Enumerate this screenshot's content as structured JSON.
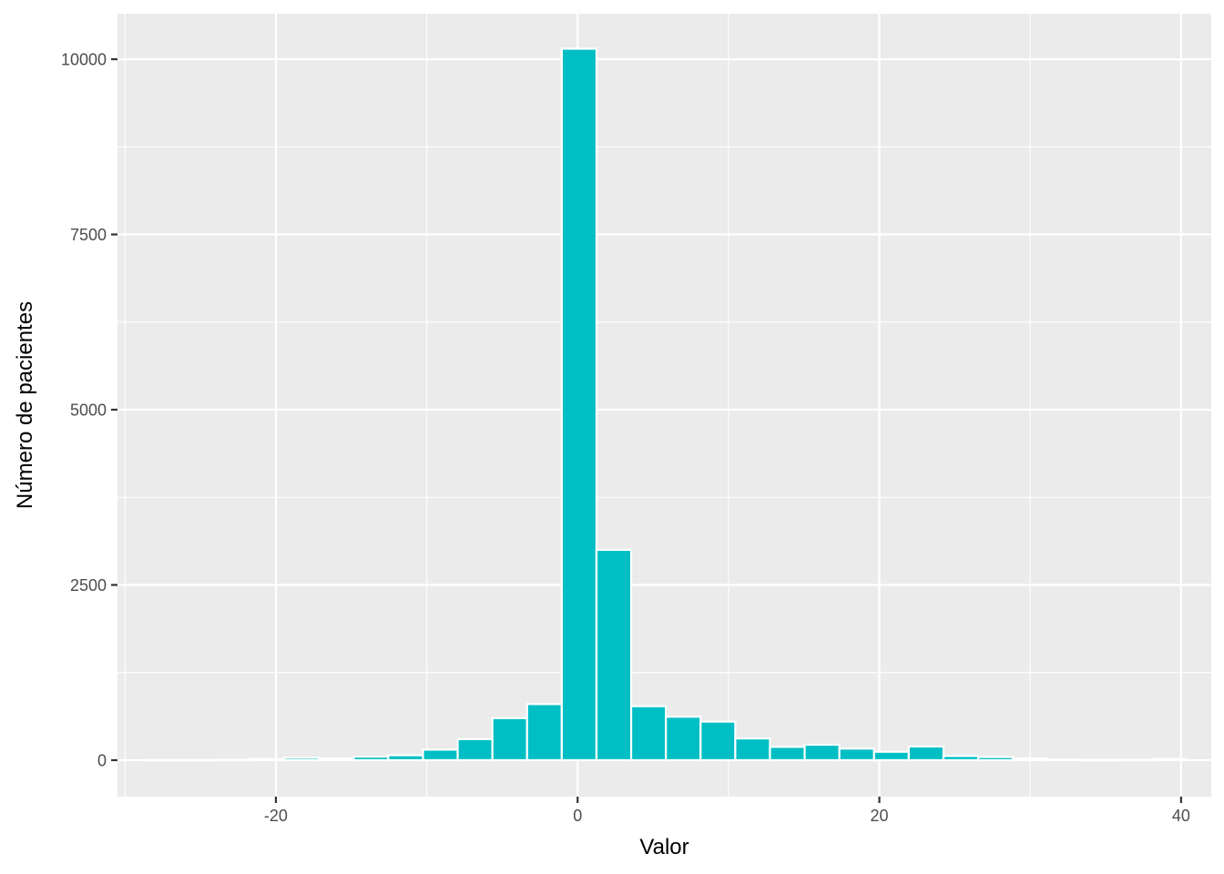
{
  "chart_data": {
    "type": "bar",
    "title": "",
    "xlabel": "Valor",
    "ylabel": "Número de pacientes",
    "xlim": [
      -30.5,
      42
    ],
    "ylim": [
      -520,
      10650
    ],
    "x_ticks": [
      -20,
      0,
      20,
      40
    ],
    "x_tick_labels": [
      "-20",
      "0",
      "20",
      "40"
    ],
    "y_ticks": [
      0,
      2500,
      5000,
      7500,
      10000
    ],
    "y_tick_labels": [
      "0",
      "2500",
      "5000",
      "7500",
      "10000"
    ],
    "grid": true,
    "legend": "none",
    "bin_width": 2.3,
    "bins": [
      {
        "x": -27.5,
        "count": 3
      },
      {
        "x": -25.2,
        "count": 3
      },
      {
        "x": -22.9,
        "count": 5
      },
      {
        "x": -20.6,
        "count": 15
      },
      {
        "x": -18.3,
        "count": 35
      },
      {
        "x": -16.0,
        "count": 25
      },
      {
        "x": -13.7,
        "count": 50
      },
      {
        "x": -11.4,
        "count": 70
      },
      {
        "x": -9.1,
        "count": 150
      },
      {
        "x": -6.8,
        "count": 300
      },
      {
        "x": -4.5,
        "count": 600
      },
      {
        "x": -2.2,
        "count": 800
      },
      {
        "x": 0.1,
        "count": 10150
      },
      {
        "x": 2.4,
        "count": 3000
      },
      {
        "x": 4.7,
        "count": 770
      },
      {
        "x": 7.0,
        "count": 620
      },
      {
        "x": 9.3,
        "count": 550
      },
      {
        "x": 11.6,
        "count": 310
      },
      {
        "x": 13.9,
        "count": 190
      },
      {
        "x": 16.2,
        "count": 220
      },
      {
        "x": 18.5,
        "count": 165
      },
      {
        "x": 20.8,
        "count": 120
      },
      {
        "x": 23.1,
        "count": 195
      },
      {
        "x": 25.4,
        "count": 60
      },
      {
        "x": 27.7,
        "count": 45
      },
      {
        "x": 30.0,
        "count": 25
      },
      {
        "x": 32.3,
        "count": 8
      },
      {
        "x": 34.6,
        "count": 4
      },
      {
        "x": 36.9,
        "count": 5
      },
      {
        "x": 39.2,
        "count": 15
      }
    ],
    "colors": {
      "fill": "#00BFC4",
      "bar_outline": "#FFFFFF",
      "panel": "#EBEBEB",
      "grid": "#FFFFFF",
      "tick_text": "#4D4D4D",
      "axis_ticks": "#333333"
    }
  }
}
